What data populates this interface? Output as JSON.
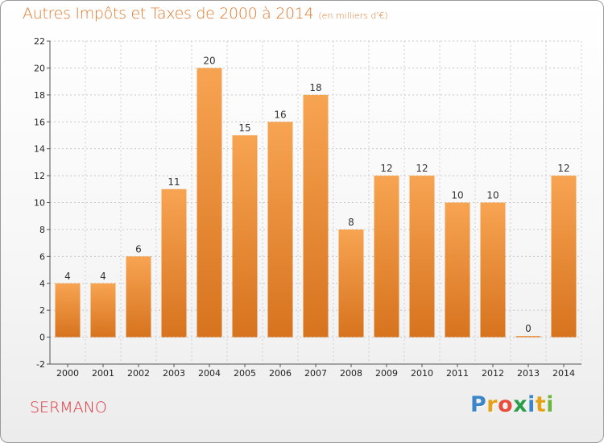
{
  "title": "Autres Impôts et Taxes de 2000 à 2014",
  "subtitle": "(en milliers d'€)",
  "city": "SERMANO",
  "logo": {
    "letters": [
      "P",
      "r",
      "o",
      "x",
      "i",
      "t",
      "i"
    ],
    "colors": [
      "#3a86c8",
      "#e3a21a",
      "#e84c3d",
      "#2a9d4a",
      "#3a86c8",
      "#e3a21a",
      "#6fb43f"
    ]
  },
  "colors": {
    "bar": "#f28a2c",
    "title": "#e07a2e",
    "city": "#e0313b"
  },
  "chart_data": {
    "type": "bar",
    "categories": [
      "2000",
      "2001",
      "2002",
      "2003",
      "2004",
      "2005",
      "2006",
      "2007",
      "2008",
      "2009",
      "2010",
      "2011",
      "2012",
      "2013",
      "2014"
    ],
    "values": [
      4,
      4,
      6,
      11,
      20,
      15,
      16,
      18,
      8,
      12,
      12,
      10,
      10,
      0,
      12
    ],
    "ylim": [
      -2,
      22
    ],
    "yticks": [
      -2,
      0,
      2,
      4,
      6,
      8,
      10,
      12,
      14,
      16,
      18,
      20,
      22
    ],
    "grid": true
  }
}
